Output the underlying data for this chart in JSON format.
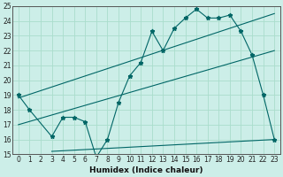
{
  "xlabel": "Humidex (Indice chaleur)",
  "bg_color": "#cceee8",
  "line_color": "#006666",
  "grid_color": "#aaddcc",
  "xlim": [
    -0.5,
    23.5
  ],
  "ylim": [
    15,
    25
  ],
  "xticks": [
    0,
    1,
    2,
    3,
    4,
    5,
    6,
    7,
    8,
    9,
    10,
    11,
    12,
    13,
    14,
    15,
    16,
    17,
    18,
    19,
    20,
    21,
    22,
    23
  ],
  "yticks": [
    15,
    16,
    17,
    18,
    19,
    20,
    21,
    22,
    23,
    24,
    25
  ],
  "line1_x": [
    0,
    1,
    3,
    4,
    5,
    6,
    7,
    8,
    9,
    10,
    11,
    12,
    13,
    14,
    15,
    16,
    17,
    18,
    19,
    20,
    21,
    22,
    23
  ],
  "line1_y": [
    19,
    18,
    16.2,
    17.5,
    17.5,
    17.2,
    14.8,
    16.0,
    18.5,
    20.3,
    21.2,
    23.3,
    22.0,
    23.5,
    24.2,
    24.8,
    24.2,
    24.2,
    24.4,
    23.3,
    21.7,
    19.0,
    16.0
  ],
  "line2_x": [
    0,
    23
  ],
  "line2_y": [
    18.8,
    24.5
  ],
  "line3_x": [
    0,
    23
  ],
  "line3_y": [
    17.0,
    22.0
  ],
  "line4_x": [
    3,
    23
  ],
  "line4_y": [
    15.2,
    16.0
  ],
  "markersize": 3.5
}
